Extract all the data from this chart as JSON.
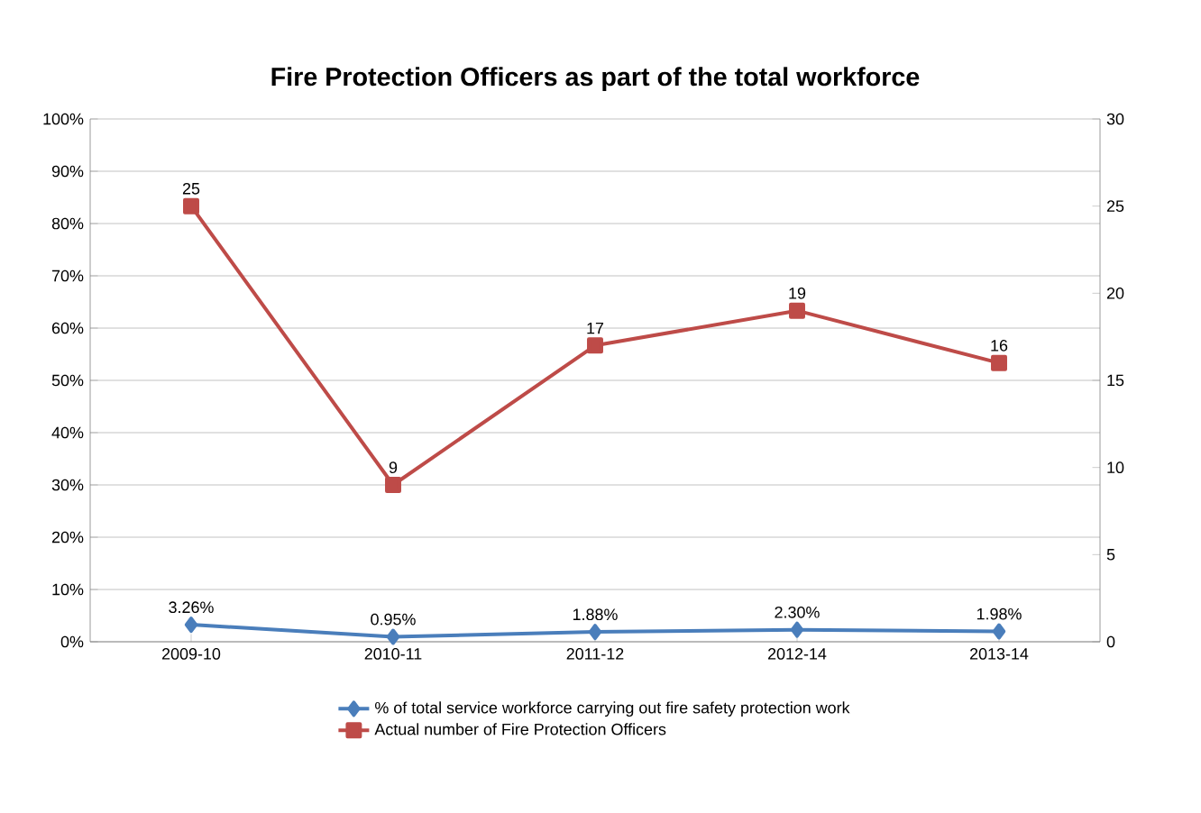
{
  "chart_data": {
    "type": "line",
    "title": "Fire Protection Officers as part of the total workforce",
    "categories": [
      "2009-10",
      "2010-11",
      "2011-12",
      "2012-14",
      "2013-14"
    ],
    "series": [
      {
        "name": "% of total service workforce carrying out fire safety protection work",
        "color": "#4a7ebb",
        "marker": "diamond",
        "values": [
          3.26,
          0.95,
          1.88,
          2.3,
          1.98
        ],
        "value_labels": [
          "3.26%",
          "0.95%",
          "1.88%",
          "2.30%",
          "1.98%"
        ]
      },
      {
        "name": "Actual number of Fire Protection Officers",
        "color": "#be4b48",
        "marker": "square",
        "axis": "y2",
        "values": [
          25,
          9,
          17,
          19,
          16
        ],
        "value_labels": [
          "25",
          "9",
          "17",
          "19",
          "16"
        ]
      }
    ],
    "ylim": [
      0,
      100
    ],
    "yticks": [
      {
        "value": 0,
        "label": "0%"
      },
      {
        "value": 10,
        "label": "10%"
      },
      {
        "value": 20,
        "label": "20%"
      },
      {
        "value": 30,
        "label": "30%"
      },
      {
        "value": 40,
        "label": "40%"
      },
      {
        "value": 50,
        "label": "50%"
      },
      {
        "value": 60,
        "label": "60%"
      },
      {
        "value": 70,
        "label": "70%"
      },
      {
        "value": 80,
        "label": "80%"
      },
      {
        "value": 90,
        "label": "90%"
      },
      {
        "value": 100,
        "label": "100%"
      }
    ],
    "y2lim": [
      0,
      30
    ],
    "y2ticks": [
      0,
      5,
      10,
      15,
      20,
      25,
      30
    ],
    "grid": "y",
    "legend": "bottom",
    "line_style": "solid"
  }
}
